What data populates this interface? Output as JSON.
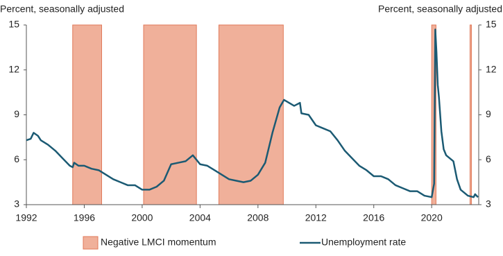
{
  "chart_data": {
    "type": "line",
    "y_label": "Percent, seasonally adjusted",
    "y2_label": "Percent, seasonally adjusted",
    "x": [
      1992.0,
      1992.3,
      1992.5,
      1992.8,
      1993.0,
      1993.5,
      1994.0,
      1994.5,
      1995.0,
      1995.2,
      1995.3,
      1995.6,
      1996.0,
      1996.5,
      1997.0,
      1997.5,
      1998.0,
      1998.5,
      1999.0,
      1999.5,
      2000.0,
      2000.5,
      2001.0,
      2001.5,
      2002.0,
      2002.5,
      2003.0,
      2003.5,
      2004.0,
      2004.5,
      2005.0,
      2005.5,
      2006.0,
      2006.5,
      2007.0,
      2007.5,
      2008.0,
      2008.5,
      2009.0,
      2009.5,
      2009.8,
      2010.5,
      2010.9,
      2011.0,
      2011.5,
      2012.0,
      2012.5,
      2013.0,
      2013.5,
      2014.0,
      2014.5,
      2015.0,
      2015.5,
      2016.0,
      2016.5,
      2017.0,
      2017.5,
      2018.0,
      2018.5,
      2019.0,
      2019.5,
      2020.0,
      2020.17,
      2020.25,
      2020.33,
      2020.42,
      2020.5,
      2020.67,
      2020.83,
      2021.0,
      2021.5,
      2021.75,
      2022.0,
      2022.5,
      2022.9,
      2023.0,
      2023.2
    ],
    "series": [
      {
        "name": "Unemployment rate",
        "color": "#1b5a73",
        "values": [
          7.3,
          7.4,
          7.8,
          7.6,
          7.3,
          7.0,
          6.6,
          6.1,
          5.6,
          5.5,
          5.8,
          5.6,
          5.6,
          5.4,
          5.3,
          5.0,
          4.7,
          4.5,
          4.3,
          4.3,
          4.0,
          4.0,
          4.2,
          4.6,
          5.7,
          5.8,
          5.9,
          6.3,
          5.7,
          5.6,
          5.3,
          5.0,
          4.7,
          4.6,
          4.5,
          4.6,
          5.0,
          5.8,
          7.8,
          9.5,
          10.0,
          9.6,
          9.8,
          9.1,
          9.0,
          8.3,
          8.1,
          7.9,
          7.3,
          6.6,
          6.1,
          5.6,
          5.3,
          4.9,
          4.9,
          4.7,
          4.3,
          4.1,
          3.9,
          3.9,
          3.6,
          3.5,
          4.4,
          14.7,
          13.2,
          11.0,
          10.2,
          7.9,
          6.7,
          6.3,
          5.9,
          4.7,
          4.0,
          3.6,
          3.5,
          3.7,
          3.5
        ]
      }
    ],
    "shaded": {
      "name": "Negative LMCI momentum",
      "color": "#f0b09a",
      "ranges": [
        [
          1995.2,
          1997.2
        ],
        [
          2000.1,
          2003.75
        ],
        [
          2005.3,
          2009.75
        ],
        [
          2020.0,
          2020.3
        ],
        [
          2022.65,
          2022.75
        ]
      ]
    },
    "xlim": [
      1992,
      2023.25
    ],
    "xticks": [
      1992,
      1996,
      2000,
      2004,
      2008,
      2012,
      2016,
      2020
    ],
    "ylim": [
      3,
      15
    ],
    "yticks": [
      3,
      6,
      9,
      12,
      15
    ],
    "y2lim": [
      3,
      15
    ],
    "y2ticks": [
      3,
      6,
      9,
      12,
      15
    ]
  }
}
